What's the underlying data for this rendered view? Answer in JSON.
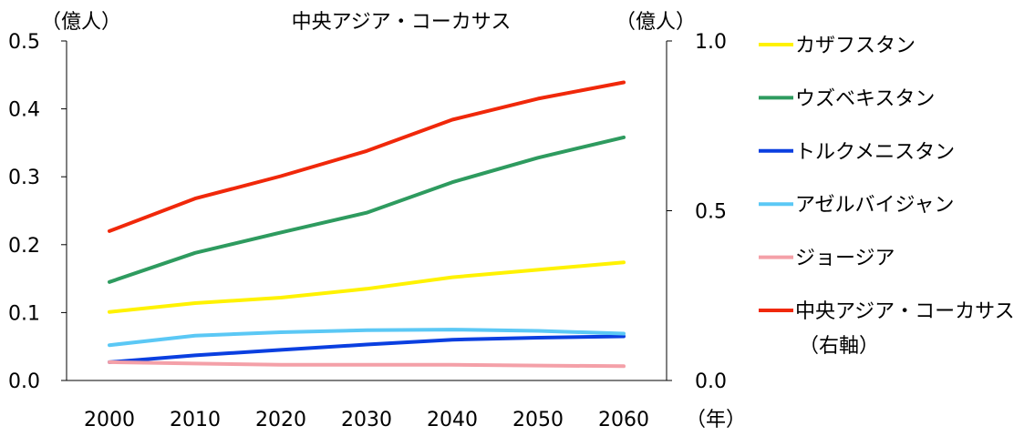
{
  "chart_data": {
    "type": "line",
    "title": "中央アジア・コーカサス",
    "left_axis": {
      "unit": "（億人）",
      "ylim": [
        0,
        0.5
      ],
      "ticks": [
        "0.0",
        "0.1",
        "0.2",
        "0.3",
        "0.4",
        "0.5"
      ]
    },
    "right_axis": {
      "unit": "（億人）",
      "ylim": [
        0,
        1.0
      ],
      "ticks": [
        "0.0",
        "0.5",
        "1.0"
      ]
    },
    "x_axis": {
      "unit": "（年）",
      "categories": [
        "2000",
        "2010",
        "2020",
        "2030",
        "2040",
        "2050",
        "2060"
      ]
    },
    "grid": false,
    "legend_position": "right",
    "series": [
      {
        "name": "カザフスタン",
        "color": "#FFF200",
        "axis": "left",
        "values": [
          0.101,
          0.114,
          0.122,
          0.135,
          0.152,
          0.163,
          0.174
        ]
      },
      {
        "name": "ウズベキスタン",
        "color": "#2E9B5F",
        "axis": "left",
        "values": [
          0.145,
          0.188,
          0.218,
          0.247,
          0.292,
          0.328,
          0.358
        ]
      },
      {
        "name": "トルクメニスタン",
        "color": "#0A3FE0",
        "axis": "left",
        "values": [
          0.027,
          0.037,
          0.045,
          0.053,
          0.06,
          0.063,
          0.065
        ]
      },
      {
        "name": "アゼルバイジャン",
        "color": "#5BC8F5",
        "axis": "left",
        "values": [
          0.052,
          0.066,
          0.071,
          0.074,
          0.075,
          0.073,
          0.069
        ]
      },
      {
        "name": "ジョージア",
        "color": "#F4A0A8",
        "axis": "left",
        "values": [
          0.027,
          0.025,
          0.023,
          0.023,
          0.023,
          0.022,
          0.021
        ]
      },
      {
        "name": "中央アジア・コーカサス",
        "sublabel": "（右軸）",
        "color": "#F0280A",
        "axis": "right",
        "values": [
          0.44,
          0.536,
          0.602,
          0.676,
          0.768,
          0.83,
          0.878
        ]
      }
    ]
  }
}
